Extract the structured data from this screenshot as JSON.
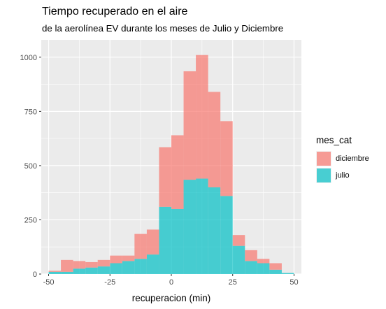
{
  "chart_data": {
    "type": "bar",
    "stacked": true,
    "title": "Tiempo recuperado en el aire",
    "subtitle": "de la aerolínea EV durante los meses de Julio y Diciembre",
    "xlabel": "recuperacion (min)",
    "ylabel": "",
    "xlim": [
      -53,
      53
    ],
    "ylim": [
      0,
      1080
    ],
    "xticks": [
      -50,
      -25,
      0,
      25,
      50
    ],
    "xtick_labels": [
      "-50",
      "-25",
      "0",
      "25",
      "50"
    ],
    "yticks": [
      0,
      250,
      500,
      750,
      1000
    ],
    "ytick_labels": [
      "0",
      "250",
      "500",
      "750",
      "1000"
    ],
    "grid": true,
    "legend_position": "right",
    "legend_title": "mes_cat",
    "x": [
      -47.5,
      -42.5,
      -37.5,
      -32.5,
      -27.5,
      -22.5,
      -17.5,
      -12.5,
      -7.5,
      -2.5,
      2.5,
      7.5,
      12.5,
      17.5,
      22.5,
      27.5,
      32.5,
      37.5,
      42.5,
      47.5
    ],
    "bin_edges": [
      -50,
      -45,
      -40,
      -35,
      -30,
      -25,
      -20,
      -15,
      -10,
      -5,
      0,
      5,
      10,
      15,
      20,
      25,
      30,
      35,
      40,
      45,
      50
    ],
    "bin_width": 5,
    "series": [
      {
        "name": "julio",
        "color": "#00BFC4",
        "values": [
          10,
          10,
          25,
          30,
          35,
          50,
          60,
          70,
          90,
          310,
          300,
          435,
          440,
          400,
          360,
          130,
          60,
          50,
          20,
          5
        ]
      },
      {
        "name": "diciembre",
        "color": "#F8766D",
        "values": [
          5,
          55,
          35,
          25,
          30,
          35,
          25,
          115,
          115,
          275,
          340,
          500,
          570,
          440,
          345,
          50,
          50,
          20,
          30,
          0
        ]
      }
    ]
  }
}
